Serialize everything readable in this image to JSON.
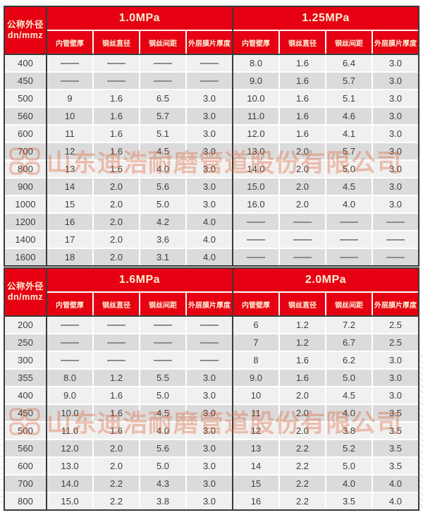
{
  "company_watermark": {
    "text": "山东迪浩耐磨管道股份有限公司",
    "logo": "dihao-clover-logo"
  },
  "colors": {
    "header_red": "#e60012",
    "header_text": "#fcefd4",
    "row_light": "#f0f0f0",
    "row_dark": "#dbdbdb",
    "border_dark": "#3a3a3a",
    "watermark": "#dd5a2b"
  },
  "tables": [
    {
      "corner": {
        "line1": "公称外径",
        "line2": "dn/mmz"
      },
      "groups": [
        {
          "label": "1.0MPa",
          "columns": [
            "内管壁厚",
            "钢丝直径",
            "钢丝间距",
            "外层膜片厚度"
          ]
        },
        {
          "label": "1.25MPa",
          "columns": [
            "内管壁厚",
            "钢丝直径",
            "钢丝间距",
            "外层膜片厚度"
          ]
        }
      ],
      "rows": [
        {
          "dn": "400",
          "cells": [
            "——",
            "——",
            "——",
            "——",
            "8.0",
            "1.6",
            "6.4",
            "3.0"
          ]
        },
        {
          "dn": "450",
          "cells": [
            "——",
            "——",
            "——",
            "——",
            "9.0",
            "1.6",
            "5.7",
            "3.0"
          ]
        },
        {
          "dn": "500",
          "cells": [
            "9",
            "1.6",
            "6.5",
            "3.0",
            "10.0",
            "1.6",
            "5.1",
            "3.0"
          ]
        },
        {
          "dn": "560",
          "cells": [
            "10",
            "1.6",
            "5.7",
            "3.0",
            "11.0",
            "1.6",
            "4.6",
            "3.0"
          ]
        },
        {
          "dn": "600",
          "cells": [
            "11",
            "1.6",
            "5.1",
            "3.0",
            "12.0",
            "1.6",
            "4.1",
            "3.0"
          ]
        },
        {
          "dn": "700",
          "cells": [
            "12",
            "1.6",
            "4.5",
            "3.0",
            "13.0",
            "2.0",
            "5.7",
            "3.0"
          ]
        },
        {
          "dn": "800",
          "cells": [
            "13",
            "1.6",
            "4.0",
            "3.0",
            "14.0",
            "2.0",
            "5.0",
            "3.0"
          ]
        },
        {
          "dn": "900",
          "cells": [
            "14",
            "2.0",
            "5.6",
            "3.0",
            "15.0",
            "2.0",
            "4.5",
            "3.0"
          ]
        },
        {
          "dn": "1000",
          "cells": [
            "15",
            "2.0",
            "5.0",
            "3.0",
            "16.0",
            "2.0",
            "4.0",
            "3.0"
          ]
        },
        {
          "dn": "1200",
          "cells": [
            "16",
            "2.0",
            "4.2",
            "4.0",
            "——",
            "——",
            "——",
            "——"
          ]
        },
        {
          "dn": "1400",
          "cells": [
            "17",
            "2.0",
            "3.6",
            "4.0",
            "——",
            "——",
            "——",
            "——"
          ]
        },
        {
          "dn": "1600",
          "cells": [
            "18",
            "2.0",
            "3.1",
            "4.0",
            "——",
            "——",
            "——",
            "——"
          ]
        }
      ]
    },
    {
      "corner": {
        "line1": "公称外径",
        "line2": "dn/mmz"
      },
      "groups": [
        {
          "label": "1.6MPa",
          "columns": [
            "内管壁厚",
            "钢丝直径",
            "钢丝间距",
            "外层膜片厚度"
          ]
        },
        {
          "label": "2.0MPa",
          "columns": [
            "内管壁厚",
            "钢丝直径",
            "钢丝间距",
            "外层膜片厚度"
          ]
        }
      ],
      "rows": [
        {
          "dn": "200",
          "cells": [
            "——",
            "——",
            "——",
            "——",
            "6",
            "1.2",
            "7.2",
            "2.5"
          ]
        },
        {
          "dn": "250",
          "cells": [
            "——",
            "——",
            "——",
            "——",
            "7",
            "1.2",
            "6.7",
            "2.5"
          ]
        },
        {
          "dn": "300",
          "cells": [
            "——",
            "——",
            "——",
            "——",
            "8",
            "1.6",
            "6.2",
            "3.0"
          ]
        },
        {
          "dn": "355",
          "cells": [
            "8.0",
            "1.2",
            "5.5",
            "3.0",
            "9.0",
            "1.6",
            "5.0",
            "3.0"
          ]
        },
        {
          "dn": "400",
          "cells": [
            "9.0",
            "1.6",
            "5.0",
            "3.0",
            "10",
            "2.0",
            "4.5",
            "3.0"
          ]
        },
        {
          "dn": "450",
          "cells": [
            "10.0",
            "1.6",
            "4.5",
            "3.0",
            "11",
            "2.0",
            "4.0",
            "3.5"
          ]
        },
        {
          "dn": "500",
          "cells": [
            "11.0",
            "1.6",
            "4.0",
            "3.0",
            "12",
            "2.0",
            "3.8",
            "3.5"
          ]
        },
        {
          "dn": "560",
          "cells": [
            "12.0",
            "2.0",
            "5.6",
            "3.0",
            "13",
            "2.2",
            "5.2",
            "3.5"
          ]
        },
        {
          "dn": "600",
          "cells": [
            "13.0",
            "2.0",
            "5.0",
            "3.0",
            "14",
            "2.2",
            "5.0",
            "3.5"
          ]
        },
        {
          "dn": "700",
          "cells": [
            "14.0",
            "2.2",
            "4.3",
            "3.0",
            "15",
            "2.2",
            "4.0",
            "4.0"
          ]
        },
        {
          "dn": "800",
          "cells": [
            "15.0",
            "2.2",
            "3.8",
            "3.0",
            "16",
            "2.2",
            "3.5",
            "4.0"
          ]
        }
      ]
    }
  ]
}
